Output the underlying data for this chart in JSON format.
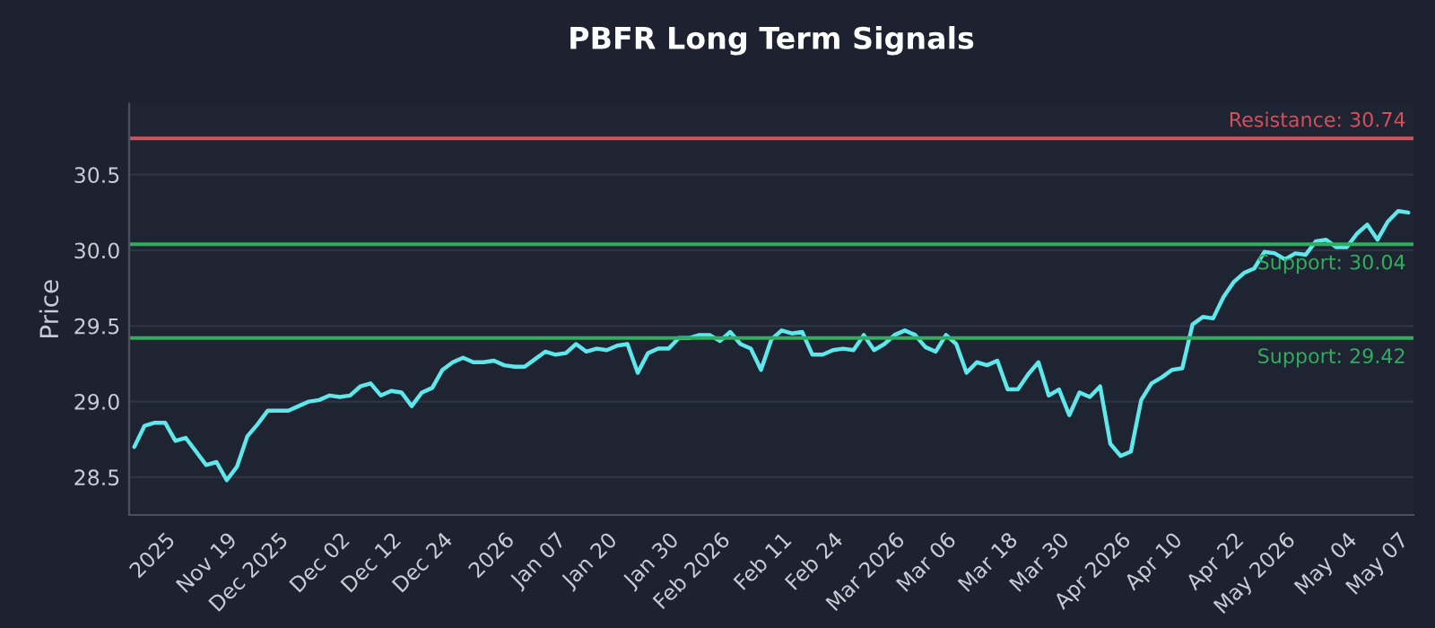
{
  "chart_data": {
    "type": "line",
    "title": "PBFR Long Term Signals",
    "ylabel": "Price",
    "categories": [
      null,
      null,
      null,
      "2025",
      null,
      null,
      null,
      null,
      null,
      "Nov 19",
      null,
      null,
      null,
      null,
      "Dec 2025",
      null,
      null,
      null,
      null,
      null,
      "Dec 02",
      null,
      null,
      null,
      null,
      "Dec 12",
      null,
      null,
      null,
      null,
      "Dec 24",
      null,
      null,
      null,
      null,
      null,
      "2026",
      null,
      null,
      null,
      null,
      "Jan 07",
      null,
      null,
      null,
      null,
      "Jan 20",
      null,
      null,
      null,
      null,
      null,
      "Jan 30",
      null,
      null,
      null,
      null,
      "Feb 2026",
      null,
      null,
      null,
      null,
      null,
      "Feb 11",
      null,
      null,
      null,
      null,
      "Feb 24",
      null,
      null,
      null,
      null,
      null,
      "Mar 2026",
      null,
      null,
      null,
      null,
      "Mar 06",
      null,
      null,
      null,
      null,
      null,
      "Mar 18",
      null,
      null,
      null,
      null,
      "Mar 30",
      null,
      null,
      null,
      null,
      null,
      "Apr 2026",
      null,
      null,
      null,
      null,
      "Apr 10",
      null,
      null,
      null,
      null,
      null,
      "Apr 22",
      null,
      null,
      null,
      null,
      "May 2026",
      null,
      null,
      null,
      null,
      null,
      "May 04",
      null,
      null,
      null,
      null,
      "May 07",
      null
    ],
    "series": [
      {
        "color": "#5ee8ec",
        "values": [
          28.7,
          28.84,
          28.86,
          28.86,
          28.74,
          28.76,
          28.67,
          28.58,
          28.6,
          28.48,
          28.57,
          28.77,
          28.85,
          28.94,
          28.94,
          28.94,
          28.97,
          29.0,
          29.01,
          29.04,
          29.03,
          29.04,
          29.1,
          29.12,
          29.04,
          29.07,
          29.06,
          28.97,
          29.06,
          29.09,
          29.21,
          29.26,
          29.29,
          29.26,
          29.26,
          29.27,
          29.24,
          29.23,
          29.23,
          29.28,
          29.33,
          29.31,
          29.32,
          29.38,
          29.33,
          29.35,
          29.34,
          29.37,
          29.38,
          29.19,
          29.32,
          29.35,
          29.35,
          29.42,
          29.42,
          29.44,
          29.44,
          29.4,
          29.46,
          29.38,
          29.35,
          29.21,
          29.41,
          29.47,
          29.45,
          29.46,
          29.31,
          29.31,
          29.34,
          29.35,
          29.34,
          29.44,
          29.34,
          29.38,
          29.44,
          29.47,
          29.44,
          29.36,
          29.33,
          29.44,
          29.38,
          29.19,
          29.26,
          29.24,
          29.27,
          29.08,
          29.08,
          29.18,
          29.26,
          29.04,
          29.08,
          28.91,
          29.06,
          29.03,
          29.1,
          28.72,
          28.64,
          28.67,
          29.01,
          29.12,
          29.16,
          29.21,
          29.22,
          29.51,
          29.56,
          29.55,
          29.69,
          29.79,
          29.85,
          29.88,
          29.99,
          29.98,
          29.94,
          29.98,
          29.97,
          30.06,
          30.07,
          30.02,
          30.02,
          30.11,
          30.17,
          30.07,
          30.19,
          30.26,
          30.25
        ]
      }
    ],
    "ylim": [
      28.25,
      30.97
    ],
    "yticks": [
      28.5,
      {
        "value": 29,
        "label": "29.0"
      },
      29.5,
      {
        "value": 30,
        "label": "30.0"
      },
      30.5
    ],
    "ref_lines": [
      {
        "axis": "y",
        "value": 30.74,
        "label": "Resistance: 30.74",
        "color": "#d0505c"
      },
      {
        "axis": "y",
        "value": 30.04,
        "label": "Support: 30.04",
        "color": "#2fae5e"
      },
      {
        "axis": "y",
        "value": 29.42,
        "label": "Support: 29.42",
        "color": "#2fae5e"
      }
    ],
    "grid": "y",
    "legend": false,
    "marker": "none",
    "line_style": "solid"
  }
}
